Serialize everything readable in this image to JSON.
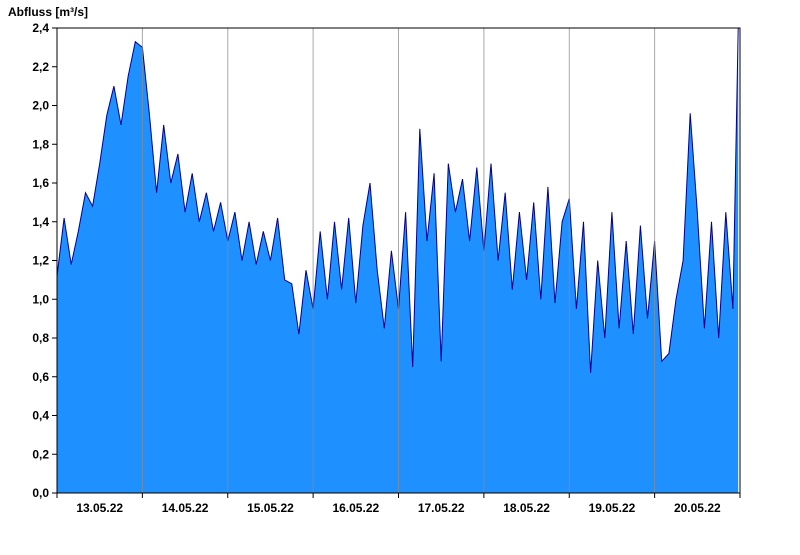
{
  "colors": {
    "fill": "#1E90FF",
    "line": "#00008B",
    "grid": "#8C8C8C",
    "axis": "#000000",
    "background": "#FFFFFF"
  },
  "chart_data": {
    "type": "area",
    "title": "Abfluss [m³/s]",
    "xlabel": "",
    "ylabel": "Abfluss [m³/s]",
    "ylim": [
      0.0,
      2.4
    ],
    "ytick_step": 0.2,
    "decimal_separator": ",",
    "grid": "vertical-day-boundaries-only",
    "legend": "none",
    "x_unit": "hours since 13.05.22 00:00",
    "total_hours": 192,
    "day_labels": [
      "13.05.22",
      "14.05.22",
      "15.05.22",
      "16.05.22",
      "17.05.22",
      "18.05.22",
      "19.05.22",
      "20.05.22"
    ],
    "hours": [
      0,
      2,
      4,
      6,
      8,
      10,
      12,
      14,
      16,
      18,
      20,
      22,
      24,
      26,
      28,
      30,
      32,
      34,
      36,
      38,
      40,
      42,
      44,
      46,
      48,
      50,
      52,
      54,
      56,
      58,
      60,
      62,
      64,
      66,
      68,
      70,
      72,
      74,
      76,
      78,
      80,
      82,
      84,
      86,
      88,
      90,
      92,
      94,
      96,
      98,
      100,
      102,
      104,
      106,
      108,
      110,
      112,
      114,
      116,
      118,
      120,
      122,
      124,
      126,
      128,
      130,
      132,
      134,
      136,
      138,
      140,
      142,
      144,
      146,
      148,
      150,
      152,
      154,
      156,
      158,
      160,
      162,
      164,
      166,
      168,
      170,
      172,
      174,
      176,
      178,
      180,
      182,
      184,
      186,
      188,
      190,
      191.5
    ],
    "values": [
      1.12,
      1.42,
      1.18,
      1.35,
      1.55,
      1.48,
      1.7,
      1.95,
      2.1,
      1.9,
      2.15,
      2.33,
      2.3,
      1.95,
      1.55,
      1.9,
      1.6,
      1.75,
      1.45,
      1.65,
      1.4,
      1.55,
      1.35,
      1.5,
      1.3,
      1.45,
      1.2,
      1.4,
      1.18,
      1.35,
      1.2,
      1.42,
      1.1,
      1.08,
      0.82,
      1.15,
      0.95,
      1.35,
      1.0,
      1.4,
      1.05,
      1.42,
      0.98,
      1.38,
      1.6,
      1.15,
      0.85,
      1.25,
      0.95,
      1.45,
      0.65,
      1.88,
      1.3,
      1.65,
      0.68,
      1.7,
      1.45,
      1.62,
      1.3,
      1.68,
      1.25,
      1.7,
      1.2,
      1.55,
      1.05,
      1.45,
      1.1,
      1.5,
      1.0,
      1.58,
      0.98,
      1.4,
      1.52,
      0.95,
      1.4,
      0.62,
      1.2,
      0.8,
      1.45,
      0.85,
      1.3,
      0.82,
      1.38,
      0.9,
      1.3,
      0.68,
      0.72,
      1.0,
      1.2,
      1.96,
      1.45,
      0.85,
      1.4,
      0.8,
      1.45,
      0.95,
      2.4
    ]
  }
}
